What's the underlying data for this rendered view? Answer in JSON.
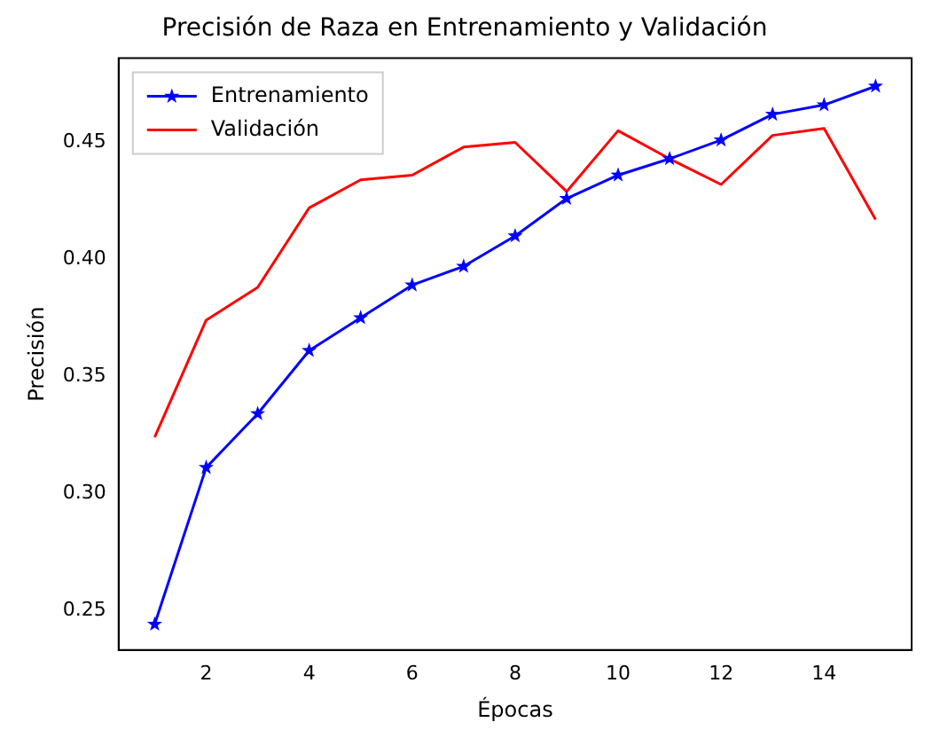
{
  "chart_data": {
    "type": "line",
    "title": "Precisión de Raza en Entrenamiento y Validación",
    "xlabel": "Épocas",
    "ylabel": "Precisión",
    "x": [
      1,
      2,
      3,
      4,
      5,
      6,
      7,
      8,
      9,
      10,
      11,
      12,
      13,
      14,
      15
    ],
    "series": [
      {
        "name": "Entrenamiento",
        "color": "#0000ff",
        "marker": "star",
        "values": [
          0.244,
          0.311,
          0.334,
          0.361,
          0.375,
          0.389,
          0.397,
          0.41,
          0.426,
          0.436,
          0.443,
          0.451,
          0.462,
          0.466,
          0.474
        ]
      },
      {
        "name": "Validación",
        "color": "#ff0000",
        "marker": "none",
        "values": [
          0.324,
          0.374,
          0.388,
          0.422,
          0.434,
          0.436,
          0.448,
          0.45,
          0.429,
          0.455,
          0.443,
          0.432,
          0.453,
          0.456,
          0.417
        ]
      }
    ],
    "xlim": [
      0.3,
      15.7
    ],
    "xticks": [
      2,
      4,
      6,
      8,
      10,
      12,
      14
    ],
    "ylim": [
      0.233,
      0.486
    ],
    "yticks": [
      {
        "value": 0.25,
        "label": "0.25"
      },
      {
        "value": 0.3,
        "label": "0.30"
      },
      {
        "value": 0.35,
        "label": "0.35"
      },
      {
        "value": 0.4,
        "label": "0.40"
      },
      {
        "value": 0.45,
        "label": "0.45"
      }
    ],
    "grid": false,
    "legend": "top left",
    "line_style": "solid"
  }
}
